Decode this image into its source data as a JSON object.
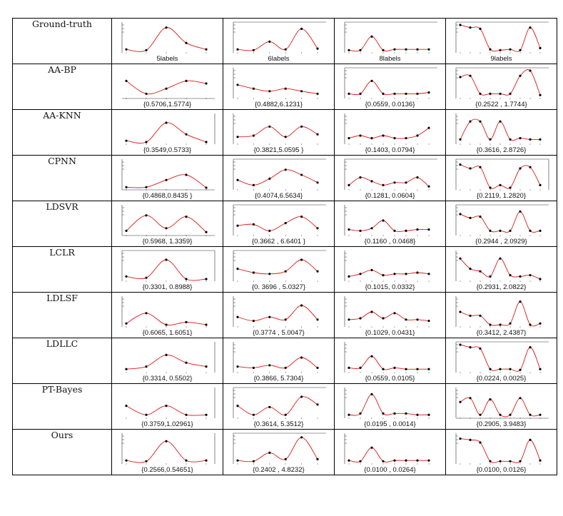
{
  "chart_data": {
    "type": "table",
    "columns": [
      {
        "labels": 5,
        "label_text": "5labels"
      },
      {
        "labels": 6,
        "label_text": "6labels"
      },
      {
        "labels": 8,
        "label_text": "8labels"
      },
      {
        "labels": 9,
        "label_text": "9labels"
      }
    ],
    "rows": [
      {
        "method": "Ground-truth",
        "cells": [
          {
            "caption": "5labels",
            "axes": "l",
            "curve": [
              0.05,
              0.02,
              0.9,
              0.3,
              0.05
            ]
          },
          {
            "caption": "6labels",
            "axes": "lt",
            "curve": [
              0.05,
              0.02,
              0.35,
              0.05,
              0.85,
              0.08
            ]
          },
          {
            "caption": "8labels",
            "axes": "lt",
            "curve": [
              0.02,
              0.02,
              0.55,
              0.02,
              0.05,
              0.05,
              0.05,
              0.05
            ]
          },
          {
            "caption": "9labels",
            "axes": "lt",
            "curve": [
              1.0,
              0.9,
              0.85,
              0.05,
              0.02,
              0.05,
              0.02,
              0.9,
              0.1
            ]
          }
        ]
      },
      {
        "method": "AA-BP",
        "cells": [
          {
            "caption": "{0.5706,1.5774}",
            "axes": "b",
            "curve": [
              0.6,
              0.1,
              0.3,
              0.6,
              0.5
            ]
          },
          {
            "caption": "{0.4882,6.1231}",
            "axes": "l",
            "curve": [
              0.45,
              0.3,
              0.2,
              0.3,
              0.2,
              0.1
            ]
          },
          {
            "caption": "{0.0559, 0.0136}",
            "axes": "lt",
            "curve": [
              0.1,
              0.1,
              0.6,
              0.1,
              0.1,
              0.1,
              0.1,
              0.15
            ]
          },
          {
            "caption": "{0.2522 , 1.7744}",
            "axes": "lt",
            "curve": [
              0.75,
              0.8,
              0.1,
              0.1,
              0.1,
              0.1,
              0.8,
              1.0,
              0.05
            ]
          }
        ]
      },
      {
        "method": "AA-KNN",
        "cells": [
          {
            "caption": "{0.3549,0.5733}",
            "axes": "r",
            "curve": [
              0.05,
              0.0,
              0.75,
              0.3,
              0.0
            ]
          },
          {
            "caption": "{0.3821,5.0595 }",
            "axes": "l",
            "curve": [
              0.2,
              0.25,
              0.6,
              0.2,
              0.6,
              0.3
            ]
          },
          {
            "caption": "{0.1403, 0.0794}",
            "axes": "l",
            "curve": [
              0.15,
              0.25,
              0.15,
              0.25,
              0.15,
              0.15,
              0.25,
              0.55
            ]
          },
          {
            "caption": "{0.3616, 2.8726}",
            "axes": "l",
            "curve": [
              0.1,
              0.8,
              0.8,
              0.1,
              0.8,
              0.1,
              0.15,
              0.1,
              0.1
            ]
          }
        ]
      },
      {
        "method": "CPNN",
        "cells": [
          {
            "caption": "{0.4868,0.8435 }",
            "axes": "lb",
            "curve": [
              0.02,
              0.02,
              0.3,
              0.5,
              0.0
            ]
          },
          {
            "caption": "{0.4074,6.5634}",
            "axes": "lt",
            "curve": [
              0.3,
              0.1,
              0.35,
              0.7,
              0.5,
              0.2
            ]
          },
          {
            "caption": "{0.1281, 0.0604}",
            "axes": "lt",
            "curve": [
              0.1,
              0.4,
              0.25,
              0.1,
              0.2,
              0.2,
              0.4,
              0.05
            ]
          },
          {
            "caption": "{0.2119, 1.2820}",
            "axes": "ltr",
            "curve": [
              0.9,
              0.75,
              0.8,
              0.0,
              0.1,
              0.0,
              0.75,
              0.8,
              0.1
            ]
          }
        ]
      },
      {
        "method": "LDSVR",
        "cells": [
          {
            "caption": "{0.5968, 1.3359}",
            "axes": "lb",
            "curve": [
              0.1,
              0.7,
              0.2,
              0.65,
              0.05
            ]
          },
          {
            "caption": "{0.3662 , 6.6401 }",
            "axes": "lt",
            "curve": [
              0.3,
              0.35,
              0.1,
              0.4,
              0.65,
              0.2
            ]
          },
          {
            "caption": "{0.1160 , 0.0468}",
            "axes": "l",
            "curve": [
              0.15,
              0.1,
              0.2,
              0.5,
              0.1,
              0.1,
              0.15,
              0.15
            ]
          },
          {
            "caption": "{0.2944 , 2.0929}",
            "axes": "lt",
            "curve": [
              0.75,
              0.6,
              0.65,
              0.1,
              0.1,
              0.1,
              0.85,
              0.1,
              0.1
            ]
          }
        ]
      },
      {
        "method": "LCLR",
        "cells": [
          {
            "caption": "{0.3301, 0.8988}",
            "axes": "ltr",
            "curve": [
              0.1,
              0.05,
              0.75,
              0.0,
              0.0
            ]
          },
          {
            "caption": "{0. 3696 , 5.0327}",
            "axes": "lt",
            "curve": [
              0.4,
              0.25,
              0.2,
              0.3,
              0.75,
              0.3
            ]
          },
          {
            "caption": "{0.1015, 0.0332}",
            "axes": "l",
            "curve": [
              0.1,
              0.2,
              0.35,
              0.15,
              0.2,
              0.2,
              0.25,
              0.2
            ]
          },
          {
            "caption": "{0.2931, 2.0822}",
            "axes": "l",
            "curve": [
              0.8,
              0.4,
              0.3,
              0.1,
              0.8,
              0.15,
              0.1,
              0.15,
              0.0
            ]
          }
        ]
      },
      {
        "method": "LDLSF",
        "cells": [
          {
            "caption": "{0.6065, 1.6051}",
            "axes": "l",
            "curve": [
              0.05,
              0.45,
              0.0,
              0.1,
              0.0
            ]
          },
          {
            "caption": "{0.3774 , 5.0047}",
            "axes": "l",
            "curve": [
              0.3,
              0.15,
              0.3,
              0.2,
              0.75,
              0.2
            ]
          },
          {
            "caption": "{0.1029, 0.0431}",
            "axes": "l",
            "curve": [
              0.2,
              0.25,
              0.5,
              0.25,
              0.45,
              0.2,
              0.2,
              0.15
            ]
          },
          {
            "caption": "{0.3412, 2.4387}",
            "axes": "l",
            "curve": [
              0.5,
              0.35,
              0.35,
              0.0,
              0.0,
              0.05,
              0.9,
              0.0,
              0.05
            ]
          }
        ]
      },
      {
        "method": "LDLLC",
        "cells": [
          {
            "caption": "{0.3314, 0.5502}",
            "axes": "r",
            "curve": [
              0.05,
              0.15,
              0.6,
              0.3,
              0.15
            ]
          },
          {
            "caption": "{0.3866, 5.7304}",
            "axes": "l",
            "curve": [
              0.15,
              0.1,
              0.2,
              0.1,
              0.5,
              0.1
            ]
          },
          {
            "caption": "{0.0559, 0.0105}",
            "axes": "l",
            "curve": [
              0.1,
              0.1,
              0.55,
              0.05,
              0.1,
              0.05,
              0.05,
              0.05
            ]
          },
          {
            "caption": "{0.0224, 0.0025}",
            "axes": "lt",
            "curve": [
              1.0,
              0.9,
              0.85,
              0.05,
              0.05,
              0.05,
              0.02,
              0.9,
              0.05
            ]
          }
        ]
      },
      {
        "method": "PT-Bayes",
        "cells": [
          {
            "caption": "{0.3759,1.02961}",
            "axes": "r",
            "curve": [
              0.4,
              0.05,
              0.4,
              0.05,
              0.05
            ]
          },
          {
            "caption": "{0.3614, 5.3512}",
            "axes": "lt",
            "curve": [
              0.4,
              0.05,
              0.35,
              0.05,
              0.75,
              0.45
            ]
          },
          {
            "caption": "{0.0195 , 0.0014}",
            "axes": "l",
            "curve": [
              0.05,
              0.1,
              0.85,
              0.1,
              0.1,
              0.1,
              0.05,
              0.05
            ]
          },
          {
            "caption": "{0.2905, 3.9483}",
            "axes": "lb",
            "curve": [
              0.55,
              0.7,
              0.05,
              0.65,
              0.05,
              0.05,
              0.7,
              0.05,
              0.05
            ]
          }
        ]
      },
      {
        "method": "Ours",
        "cells": [
          {
            "caption": "{0.2566,0.54651}",
            "axes": "lr",
            "curve": [
              0.05,
              0.02,
              0.8,
              0.05,
              0.05
            ]
          },
          {
            "caption": "{0.2402 ,   4.8232}",
            "axes": "lt",
            "curve": [
              0.05,
              0.02,
              0.35,
              0.1,
              0.95,
              0.1
            ]
          },
          {
            "caption": "{0.0100  ,   0.0264}",
            "axes": "l",
            "curve": [
              0.05,
              0.02,
              0.55,
              0.02,
              0.05,
              0.05,
              0.05,
              0.05
            ]
          },
          {
            "caption": "{0.0100,   0.0126}",
            "axes": "l",
            "curve": [
              0.9,
              0.85,
              0.75,
              0.02,
              0.02,
              0.02,
              0.02,
              0.85,
              0.05
            ]
          }
        ]
      }
    ]
  }
}
